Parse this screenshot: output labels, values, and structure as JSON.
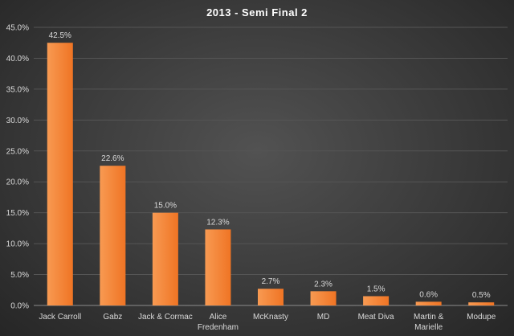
{
  "chart_data": {
    "type": "bar",
    "title": "2013 - Semi Final 2",
    "xlabel": "",
    "ylabel": "",
    "categories": [
      "Jack Carroll",
      "Gabz",
      "Jack & Cormac",
      "Alice Fredenham",
      "McKnasty",
      "MD",
      "Meat Diva",
      "Martin & Marielle",
      "Modupe"
    ],
    "category_lines": [
      [
        "Jack Carroll"
      ],
      [
        "Gabz"
      ],
      [
        "Jack & Cormac"
      ],
      [
        "Alice",
        "Fredenham"
      ],
      [
        "McKnasty"
      ],
      [
        "MD"
      ],
      [
        "Meat Diva"
      ],
      [
        "Martin &",
        "Marielle"
      ],
      [
        "Modupe"
      ]
    ],
    "values": [
      42.5,
      22.6,
      15.0,
      12.3,
      2.7,
      2.3,
      1.5,
      0.6,
      0.5
    ],
    "data_labels": [
      "42.5%",
      "22.6%",
      "15.0%",
      "12.3%",
      "2.7%",
      "2.3%",
      "1.5%",
      "0.6%",
      "0.5%"
    ],
    "ylim": [
      0,
      45
    ],
    "y_ticks": [
      0,
      5,
      10,
      15,
      20,
      25,
      30,
      35,
      40,
      45
    ],
    "y_tick_labels": [
      "0.0%",
      "5.0%",
      "10.0%",
      "15.0%",
      "20.0%",
      "25.0%",
      "30.0%",
      "35.0%",
      "40.0%",
      "45.0%"
    ],
    "grid": true,
    "legend": "none",
    "colors": {
      "bar": "#f2812e",
      "bar_light": "#f89a52",
      "grid": "#555555",
      "text": "#d9d9d9",
      "title": "#ffffff"
    }
  }
}
